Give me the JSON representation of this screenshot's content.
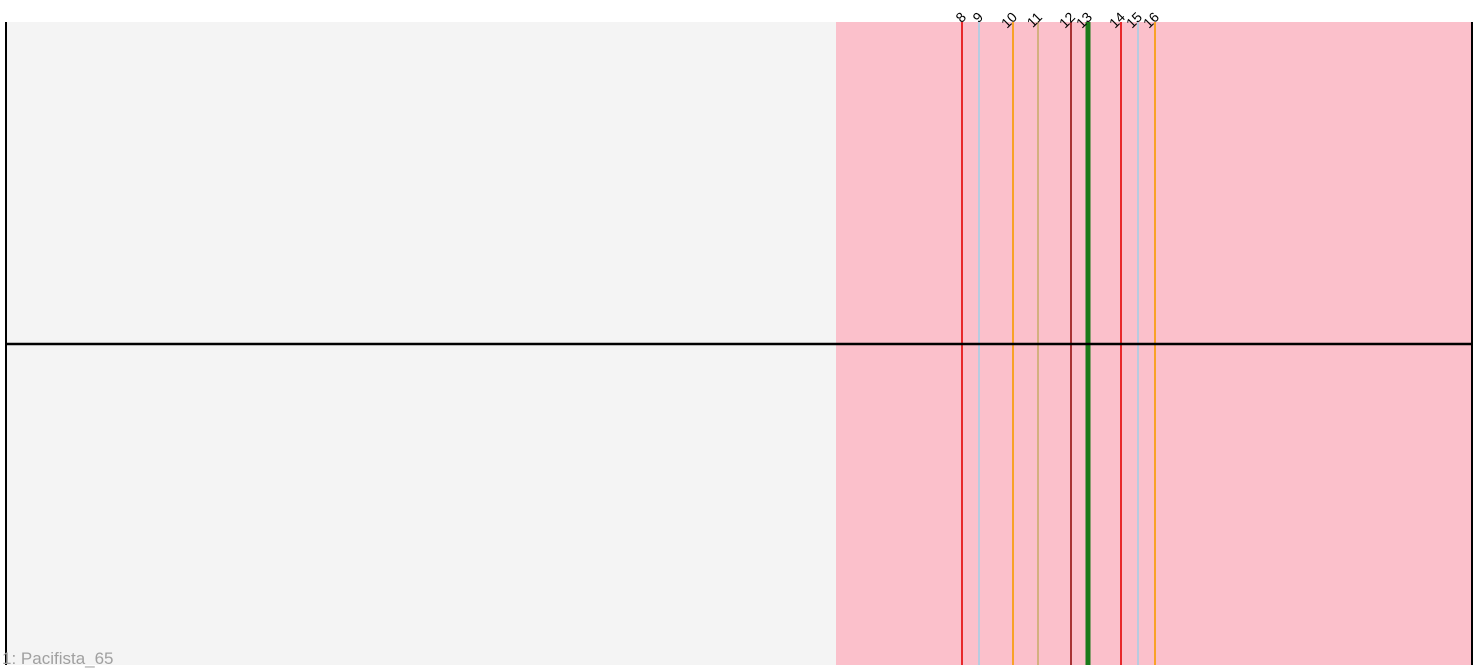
{
  "track": {
    "label": "1: Pacifista_65",
    "background_color": "#f4f4f4",
    "highlight_color": "#fbc0cb",
    "axis_color": "#000000"
  },
  "chart_data": {
    "type": "other",
    "description_free": true,
    "markers": [
      {
        "label": "8",
        "color": "#e8282b",
        "emphasis": false
      },
      {
        "label": "9",
        "color": "#b8cbe0",
        "emphasis": false
      },
      {
        "label": "10",
        "color": "#f8a228",
        "emphasis": false
      },
      {
        "label": "11",
        "color": "#d4b080",
        "emphasis": false
      },
      {
        "label": "12",
        "color": "#a83234",
        "emphasis": false
      },
      {
        "label": "13",
        "color": "#1a7a1a",
        "emphasis": true
      },
      {
        "label": "14",
        "color": "#e8282b",
        "emphasis": false
      },
      {
        "label": "15",
        "color": "#b8cbe0",
        "emphasis": false
      },
      {
        "label": "16",
        "color": "#f8a228",
        "emphasis": false
      }
    ]
  }
}
